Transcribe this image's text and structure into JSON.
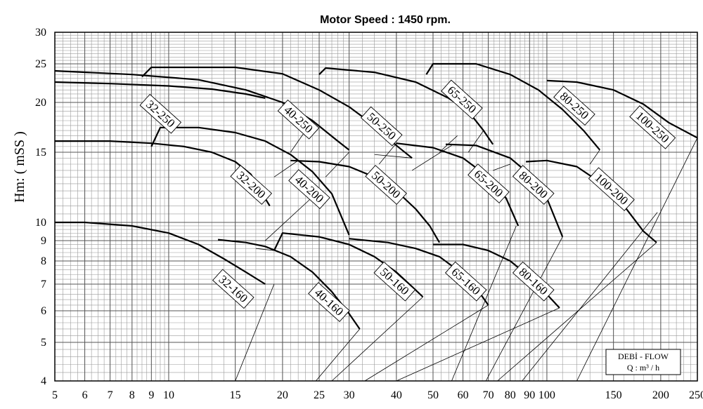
{
  "chart_data": {
    "type": "line",
    "title": "Motor Speed :  1450 rpm.",
    "ylabel": "Hm: ( mSS )",
    "xscale": "log",
    "yscale": "log",
    "xlim": [
      5,
      250
    ],
    "ylim": [
      4,
      30
    ],
    "grid": true,
    "x_ticks": [
      5,
      6,
      7,
      8,
      9,
      10,
      15,
      20,
      25,
      30,
      40,
      50,
      60,
      70,
      80,
      90,
      100,
      150,
      200,
      250
    ],
    "y_ticks": [
      4,
      5,
      6,
      7,
      8,
      9,
      10,
      15,
      20,
      25,
      30
    ],
    "legend": {
      "line1": "DEBİ - FLOW",
      "line2": "Q : m³ / h",
      "placement": "bottom-right"
    },
    "series": [
      {
        "name": "32-160",
        "points": [
          [
            5,
            10
          ],
          [
            6,
            10
          ],
          [
            8,
            9.8
          ],
          [
            10,
            9.4
          ],
          [
            12,
            8.8
          ],
          [
            14,
            8.1
          ],
          [
            16,
            7.5
          ],
          [
            18,
            7
          ]
        ],
        "label_at": [
          14.8,
          6.8
        ]
      },
      {
        "name": "40-160",
        "points": [
          [
            13.5,
            9.05
          ],
          [
            16,
            8.9
          ],
          [
            18,
            8.7
          ],
          [
            21,
            8.2
          ],
          [
            24,
            7.5
          ],
          [
            27,
            6.7
          ],
          [
            30,
            5.9
          ],
          [
            32,
            5.4
          ]
        ],
        "label_at": [
          26.5,
          6.3
        ]
      },
      {
        "name": "50-160",
        "points": [
          [
            19,
            8.5
          ],
          [
            20,
            9.4
          ],
          [
            25,
            9.2
          ],
          [
            30,
            8.8
          ],
          [
            35,
            8.2
          ],
          [
            40,
            7.5
          ],
          [
            44,
            6.9
          ],
          [
            47,
            6.5
          ]
        ],
        "label_at": [
          39.5,
          7.1
        ]
      },
      {
        "name": "65-160",
        "points": [
          [
            30,
            9.1
          ],
          [
            38,
            8.9
          ],
          [
            45,
            8.6
          ],
          [
            52,
            8.2
          ],
          [
            58,
            7.6
          ],
          [
            64,
            7
          ],
          [
            70,
            6.2
          ]
        ],
        "label_at": [
          61,
          7.1
        ]
      },
      {
        "name": "80-160",
        "points": [
          [
            50,
            8.8
          ],
          [
            60,
            8.8
          ],
          [
            70,
            8.5
          ],
          [
            80,
            8
          ],
          [
            90,
            7.3
          ],
          [
            100,
            6.6
          ],
          [
            108,
            6.1
          ]
        ],
        "label_at": [
          92,
          7.1
        ]
      },
      {
        "name": "32-200",
        "points": [
          [
            5,
            16
          ],
          [
            7,
            16
          ],
          [
            9,
            15.8
          ],
          [
            11,
            15.5
          ],
          [
            13,
            15
          ],
          [
            15,
            14.2
          ],
          [
            16.5,
            13.2
          ],
          [
            17.5,
            12
          ],
          [
            18.5,
            11
          ]
        ],
        "label_at": [
          16.5,
          12.4
        ]
      },
      {
        "name": "40-200",
        "points": [
          [
            9,
            15.5
          ],
          [
            9.5,
            17.3
          ],
          [
            12,
            17.3
          ],
          [
            15,
            16.8
          ],
          [
            18,
            16
          ],
          [
            21,
            14.8
          ],
          [
            24,
            13.4
          ],
          [
            27,
            11.8
          ],
          [
            30,
            9.3
          ]
        ],
        "label_at": [
          23.5,
          12.1
        ]
      },
      {
        "name": "50-200",
        "points": [
          [
            21,
            14.3
          ],
          [
            25,
            14.2
          ],
          [
            30,
            13.8
          ],
          [
            35,
            13
          ],
          [
            40,
            12
          ],
          [
            45,
            10.8
          ],
          [
            49,
            9.8
          ],
          [
            52,
            8.9
          ]
        ],
        "label_at": [
          37.5,
          12.4
        ]
      },
      {
        "name": "65-200",
        "points": [
          [
            40,
            15.8
          ],
          [
            50,
            15.4
          ],
          [
            60,
            14.5
          ],
          [
            70,
            13
          ],
          [
            78,
            11.5
          ],
          [
            84,
            9.8
          ]
        ],
        "label_at": [
          70,
          12.5
        ]
      },
      {
        "name": "80-200",
        "points": [
          [
            54,
            15.7
          ],
          [
            65,
            15.6
          ],
          [
            80,
            14.5
          ],
          [
            90,
            13.2
          ],
          [
            100,
            11.5
          ],
          [
            110,
            9.2
          ]
        ],
        "label_at": [
          92,
          12.4
        ]
      },
      {
        "name": "100-200",
        "points": [
          [
            88,
            14.2
          ],
          [
            100,
            14.3
          ],
          [
            120,
            13.8
          ],
          [
            140,
            12.5
          ],
          [
            160,
            11
          ],
          [
            180,
            9.5
          ],
          [
            195,
            8.9
          ]
        ],
        "label_at": [
          148,
          12.1
        ]
      },
      {
        "name": "32-250",
        "points": [
          [
            5,
            22.5
          ],
          [
            7,
            22.3
          ],
          [
            10,
            22
          ],
          [
            13,
            21.6
          ],
          [
            16,
            21
          ],
          [
            18,
            20.5
          ]
        ],
        "label_at": [
          9.5,
          18.7
        ]
      },
      {
        "name": "40-250",
        "points": [
          [
            5,
            24
          ],
          [
            8,
            23.5
          ],
          [
            12,
            22.8
          ],
          [
            16,
            21.5
          ],
          [
            20,
            20
          ],
          [
            24,
            18
          ],
          [
            28,
            16
          ],
          [
            30,
            15.2
          ]
        ],
        "label_at": [
          22,
          18.1
        ]
      },
      {
        "name": "50-250",
        "points": [
          [
            8.5,
            23.2
          ],
          [
            9,
            24.5
          ],
          [
            15,
            24.5
          ],
          [
            20,
            23.6
          ],
          [
            25,
            21.5
          ],
          [
            30,
            19.5
          ],
          [
            35,
            17.5
          ],
          [
            40,
            15.6
          ],
          [
            44,
            14.5
          ]
        ],
        "label_at": [
          36.5,
          17.4
        ]
      },
      {
        "name": "65-250",
        "points": [
          [
            25,
            23.5
          ],
          [
            26,
            24.4
          ],
          [
            35,
            23.8
          ],
          [
            45,
            22.5
          ],
          [
            55,
            20.5
          ],
          [
            62,
            19
          ],
          [
            68,
            17
          ],
          [
            72,
            15.7
          ]
        ],
        "label_at": [
          59.5,
          20.3
        ]
      },
      {
        "name": "80-250",
        "points": [
          [
            48,
            23.5
          ],
          [
            50,
            25
          ],
          [
            65,
            25
          ],
          [
            80,
            23.5
          ],
          [
            95,
            21.5
          ],
          [
            110,
            19.2
          ],
          [
            125,
            17
          ],
          [
            138,
            15.2
          ]
        ],
        "label_at": [
          118,
          19.6
        ]
      },
      {
        "name": "100-250",
        "points": [
          [
            100,
            22.7
          ],
          [
            120,
            22.5
          ],
          [
            150,
            21.5
          ],
          [
            180,
            19.8
          ],
          [
            210,
            17.8
          ],
          [
            250,
            16.3
          ]
        ],
        "label_at": [
          190,
          17.3
        ]
      }
    ],
    "efficiency_lines": [
      [
        [
          15,
          4
        ],
        [
          19,
          7
        ]
      ],
      [
        [
          24.5,
          4
        ],
        [
          32,
          5.4
        ]
      ],
      [
        [
          27,
          4
        ],
        [
          47,
          6.5
        ]
      ],
      [
        [
          33,
          4
        ],
        [
          70,
          6.2
        ]
      ],
      [
        [
          40,
          4
        ],
        [
          108,
          6.1
        ]
      ],
      [
        [
          56,
          4
        ],
        [
          83,
          9.8
        ]
      ],
      [
        [
          69,
          4
        ],
        [
          110,
          9.2
        ]
      ],
      [
        [
          74,
          4
        ],
        [
          195,
          8.9
        ]
      ],
      [
        [
          86,
          4
        ],
        [
          196,
          10.6
        ]
      ],
      [
        [
          120,
          4
        ],
        [
          250,
          16.3
        ]
      ],
      [
        [
          18,
          9
        ],
        [
          25,
          12
        ]
      ],
      [
        [
          17,
          8.6
        ],
        [
          19,
          8.5
        ]
      ],
      [
        [
          26,
          13
        ],
        [
          30,
          15
        ]
      ],
      [
        [
          35,
          14.8
        ],
        [
          44,
          14.5
        ]
      ],
      [
        [
          19,
          13
        ],
        [
          22,
          14.3
        ]
      ],
      [
        [
          21,
          15
        ],
        [
          24,
          18
        ]
      ],
      [
        [
          36,
          14
        ],
        [
          40,
          15.8
        ]
      ],
      [
        [
          44,
          13.5
        ],
        [
          56,
          15.6
        ]
      ],
      [
        [
          52,
          15
        ],
        [
          58,
          16.5
        ]
      ],
      [
        [
          62,
          15
        ],
        [
          68,
          17
        ]
      ],
      [
        [
          72,
          13.5
        ],
        [
          80,
          14
        ]
      ],
      [
        [
          130,
          14
        ],
        [
          138,
          15.2
        ]
      ]
    ]
  }
}
